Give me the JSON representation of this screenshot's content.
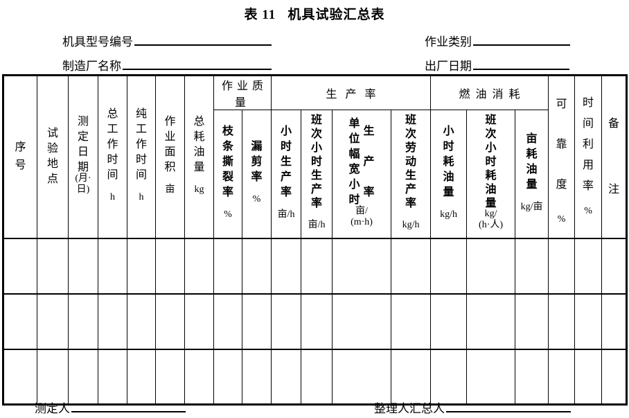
{
  "title": "表 11   机具试验汇总表",
  "colors": {
    "ink": "#000000",
    "paper": "#ffffff"
  },
  "header_fields": {
    "model_label": "机具型号编号",
    "category_label": "作业类别",
    "manufacturer_label": "制造厂名称",
    "factory_date_label": "出厂日期"
  },
  "table": {
    "groups": [
      {
        "label": "作业质量"
      },
      {
        "label": "生产率"
      },
      {
        "label": "燃油消耗"
      }
    ],
    "columns": [
      {
        "label": "序号",
        "unit": ""
      },
      {
        "label": "试验地点",
        "unit": ""
      },
      {
        "label": "测定日期",
        "unit": "(月·\n日)"
      },
      {
        "label": "总工作时间",
        "unit": "h"
      },
      {
        "label": "纯工作时间",
        "unit": "h"
      },
      {
        "label": "作业面积",
        "unit": "亩"
      },
      {
        "label": "总耗油量",
        "unit": "kg"
      },
      {
        "label": "枝条撕裂率",
        "unit": "%"
      },
      {
        "label": "漏剪率",
        "unit": "%"
      },
      {
        "label": "小时生产率",
        "unit": "亩/h"
      },
      {
        "label": "班次小时生产率",
        "unit": "亩/h"
      },
      {
        "label": "单位幅宽小时",
        "label2": "生产率",
        "unit": "亩/\n(m·h)"
      },
      {
        "label": "班次劳动生产率",
        "unit": "kg/h"
      },
      {
        "label": "小时耗油量",
        "unit": "kg/h"
      },
      {
        "label": "班次小时耗油量",
        "unit": "kg/\n(h·人)"
      },
      {
        "label": "亩耗油量",
        "unit": "kg/亩"
      },
      {
        "label": "可靠度",
        "unit": "%"
      },
      {
        "label": "时间利用率",
        "unit": "%"
      },
      {
        "label": "备注",
        "unit": ""
      }
    ],
    "empty_rows": 3
  },
  "footer": {
    "measurer_label": "测定人",
    "organizer_label": "整理人汇总人"
  }
}
